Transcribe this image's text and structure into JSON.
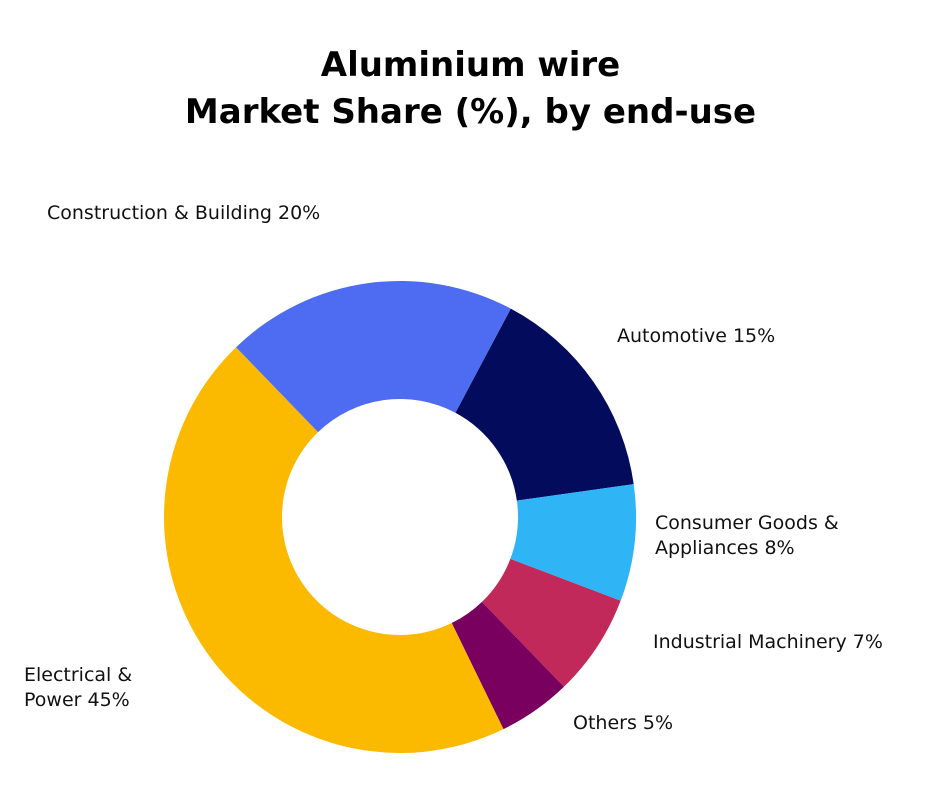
{
  "chart_data": {
    "type": "donut",
    "title": "Aluminium wire",
    "subtitle": "Market Share (%), by end-use",
    "categories": [
      "Automotive",
      "Consumer Goods & Appliances",
      "Industrial Machinery",
      "Others",
      "Electrical & Power",
      "Construction & Building"
    ],
    "values": [
      15,
      8,
      7,
      5,
      45,
      20
    ],
    "value_labels": [
      "15%",
      "8%",
      "7%",
      "5%",
      "45%",
      "20%"
    ],
    "colors": [
      "#020b5c",
      "#2fb5f6",
      "#c0295a",
      "#7a0060",
      "#fbb900",
      "#4e6cf2"
    ]
  }
}
